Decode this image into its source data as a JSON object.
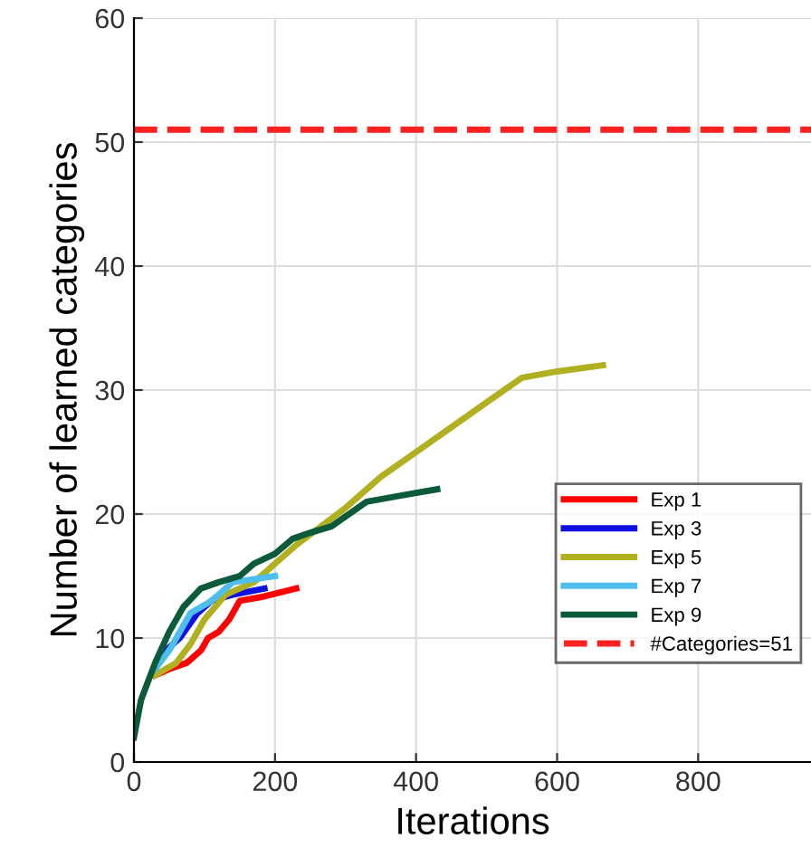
{
  "chart_data": {
    "type": "line",
    "xlabel": "Iterations",
    "ylabel": "Number of learned categories",
    "xlim": [
      0,
      960
    ],
    "ylim": [
      0,
      60
    ],
    "xticks": [
      0,
      200,
      400,
      600,
      800
    ],
    "yticks": [
      0,
      10,
      20,
      30,
      40,
      50,
      60
    ],
    "grid": true,
    "legend": "bottom right",
    "line_style": "solid",
    "series": [
      {
        "name": "Exp 1",
        "color": "#ff0000",
        "x": [
          30,
          50,
          75,
          95,
          105,
          120,
          135,
          150,
          180,
          230
        ],
        "values": [
          7,
          7.5,
          8,
          9,
          10,
          10.5,
          11.5,
          13,
          13.3,
          14
        ]
      },
      {
        "name": "Exp 3",
        "color": "#1010e0",
        "x": [
          30,
          45,
          65,
          90,
          110,
          140,
          185
        ],
        "values": [
          7.5,
          9,
          10,
          12,
          13,
          13.5,
          14
        ]
      },
      {
        "name": "Exp 5",
        "color": "#b0b020",
        "x": [
          30,
          60,
          80,
          100,
          130,
          170,
          230,
          300,
          350,
          400,
          450,
          500,
          550,
          600,
          665
        ],
        "values": [
          7,
          8,
          9.5,
          11.5,
          13.5,
          14.5,
          17.5,
          20.5,
          23,
          25,
          27,
          29,
          31,
          31.5,
          32
        ]
      },
      {
        "name": "Exp 7",
        "color": "#4dbeee",
        "x": [
          30,
          50,
          80,
          110,
          140,
          200
        ],
        "values": [
          7.5,
          9,
          12,
          13,
          14.5,
          15
        ]
      },
      {
        "name": "Exp 9",
        "color": "#0b5a3a",
        "x": [
          0,
          10,
          30,
          50,
          70,
          95,
          120,
          150,
          170,
          200,
          225,
          250,
          280,
          330,
          380,
          430
        ],
        "values": [
          2,
          5,
          8,
          10.5,
          12.5,
          14,
          14.5,
          15,
          16,
          16.8,
          18,
          18.5,
          19,
          21,
          21.5,
          22
        ]
      }
    ],
    "ref_lines": [
      {
        "axis": "y",
        "value": 51,
        "label": "#Categories=51",
        "color": "#ff2020",
        "line_style": "dashed"
      }
    ]
  }
}
